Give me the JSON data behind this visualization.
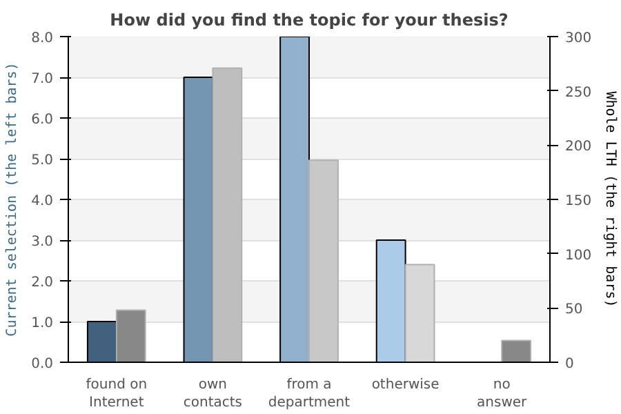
{
  "chart_data": {
    "type": "bar",
    "title": "How did you find the topic for your thesis?",
    "ylabel": "Current selection (the left bars)",
    "y2label": "Whole LTH (the right bars)",
    "categories": [
      "found on Internet",
      "own contacts",
      "from a department",
      "otherwise",
      "no answer"
    ],
    "series": [
      {
        "colors": [
          "#41617f",
          "#7596b2",
          "#90b0cc",
          "#abcce8",
          "#abcce8"
        ],
        "values": [
          1,
          7,
          8,
          3,
          null
        ]
      },
      {
        "colors": [
          "#888888",
          "#bebebe",
          "#c8c8c8",
          "#d8d8d8",
          "#888888"
        ],
        "values": [
          48,
          271,
          186,
          90,
          20
        ],
        "axis": "y2"
      }
    ],
    "ylim": [
      0,
      8
    ],
    "yticks": [
      {
        "value": 0,
        "label": "0.0"
      },
      {
        "value": 1,
        "label": "1.0"
      },
      {
        "value": 2,
        "label": "2.0"
      },
      {
        "value": 3,
        "label": "3.0"
      },
      {
        "value": 4,
        "label": "4.0"
      },
      {
        "value": 5,
        "label": "5.0"
      },
      {
        "value": 6,
        "label": "6.0"
      },
      {
        "value": 7,
        "label": "7.0"
      },
      {
        "value": 8,
        "label": "8.0"
      }
    ],
    "y2lim": [
      0,
      300
    ],
    "y2ticks": [
      0,
      50,
      100,
      150,
      200,
      250,
      300
    ],
    "grid": "y"
  }
}
